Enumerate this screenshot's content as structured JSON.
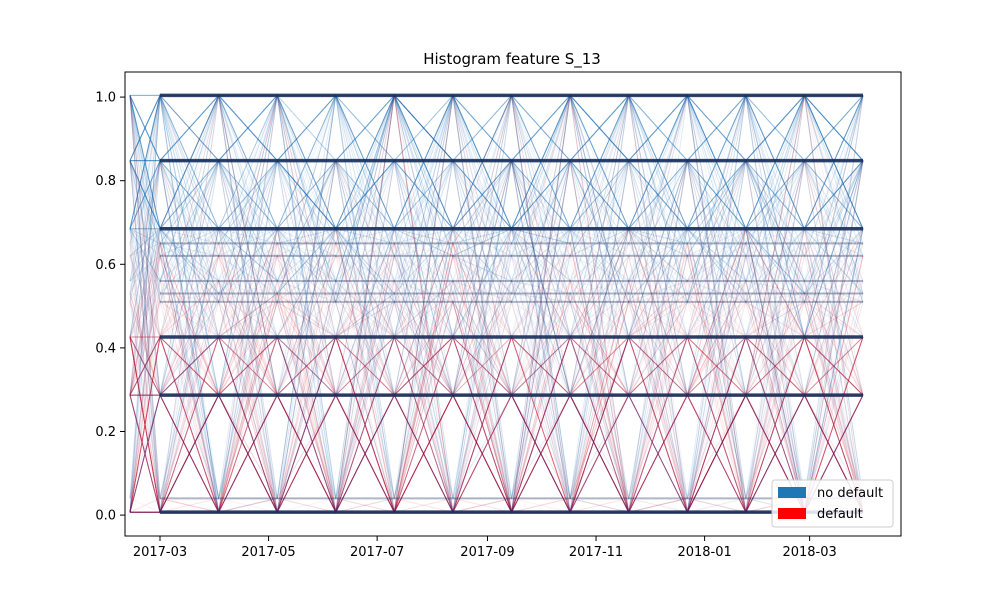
{
  "chart_data": {
    "type": "line",
    "title": "Histogram feature S_13",
    "xlabel": "",
    "ylabel": "",
    "x_ticks": [
      "2017-03",
      "2017-05",
      "2017-07",
      "2017-09",
      "2017-11",
      "2018-01",
      "2018-03"
    ],
    "x_range": [
      "2017-03-01",
      "2018-03-31"
    ],
    "y_ticks": [
      "0.0",
      "0.2",
      "0.4",
      "0.6",
      "0.8",
      "1.0"
    ],
    "ylim": [
      -0.05,
      1.06
    ],
    "levels_major": [
      0.007,
      0.287,
      0.426,
      0.685,
      0.848,
      1.004
    ],
    "levels_minor": [
      0.04,
      0.51,
      0.53,
      0.56,
      0.62,
      0.65
    ],
    "legend_position": "lower-right",
    "grid": false,
    "series": [
      {
        "name": "no default",
        "color": "#1f77b4"
      },
      {
        "name": "default",
        "color": "#ff0000"
      }
    ]
  }
}
